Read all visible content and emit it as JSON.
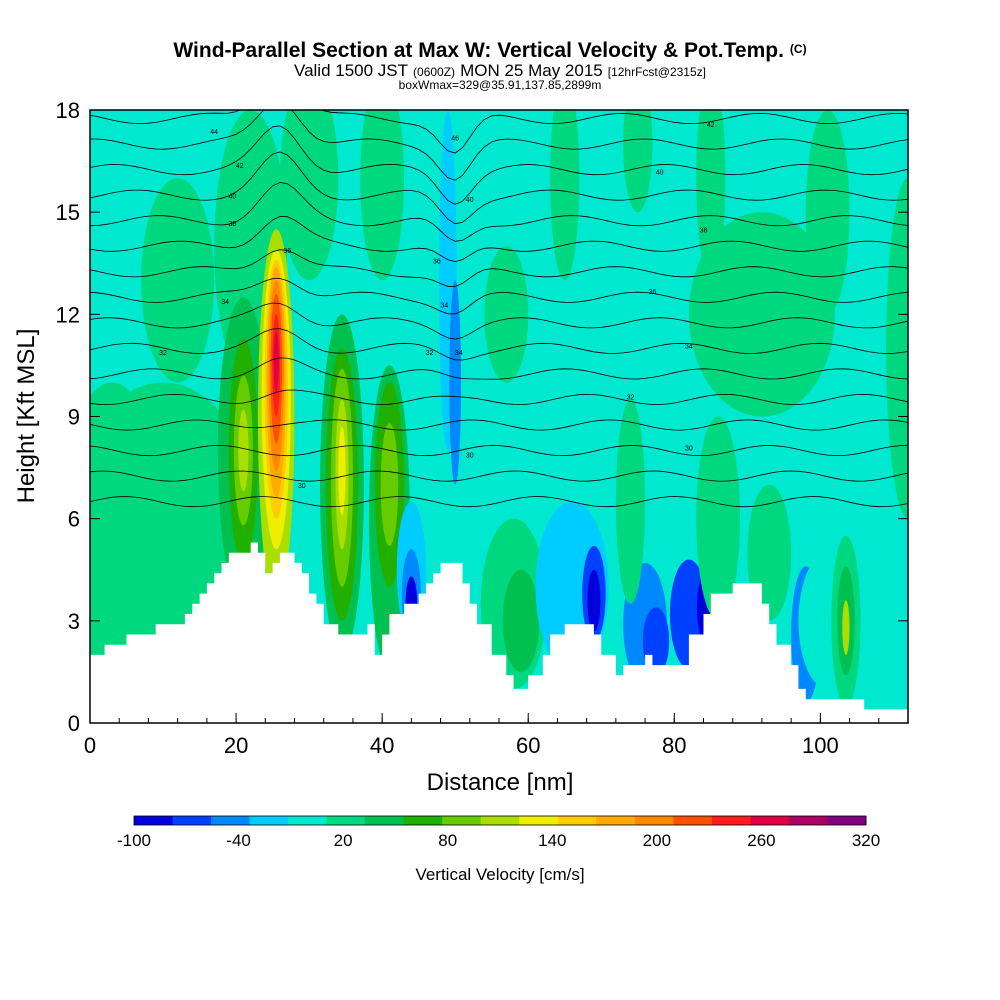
{
  "title": {
    "main": "Wind-Parallel Section at Max W: Vertical Velocity & Pot.Temp.",
    "main_suffix": "(C)",
    "valid_a": "Valid 1500 JST",
    "valid_b": "(0600Z)",
    "valid_c": "MON 25 May 2015",
    "valid_d": "[12hrFcst@2315z]",
    "box": "boxWmax=329@35.91,137.85,2899m"
  },
  "chart_data": {
    "type": "heatmap",
    "xlabel": "Distance [nm]",
    "ylabel": "Height [Kft MSL]",
    "xlim": [
      0,
      112
    ],
    "ylim": [
      0,
      18
    ],
    "x_ticks": [
      0,
      20,
      40,
      60,
      80,
      100
    ],
    "y_ticks": [
      0,
      3,
      6,
      9,
      12,
      15,
      18
    ],
    "colorbar": {
      "label": "Vertical Velocity [cm/s]",
      "tick_labels": [
        "-100",
        "-40",
        "20",
        "80",
        "140",
        "200",
        "260",
        "320"
      ],
      "colors": [
        "#0000dc",
        "#0040ff",
        "#0088ff",
        "#00ccff",
        "#00e8d0",
        "#00d880",
        "#00c050",
        "#22b000",
        "#66cc00",
        "#aadd00",
        "#eeee00",
        "#ffcc00",
        "#ffaa00",
        "#ff8800",
        "#ff5000",
        "#ff1e1e",
        "#dd0044",
        "#aa0066",
        "#800080"
      ]
    },
    "terrain": [
      [
        0,
        2
      ],
      [
        2,
        2
      ],
      [
        2,
        2.3
      ],
      [
        5,
        2.3
      ],
      [
        5,
        2.6
      ],
      [
        9,
        2.6
      ],
      [
        9,
        2.9
      ],
      [
        13,
        2.9
      ],
      [
        13,
        3.2
      ],
      [
        14,
        3.2
      ],
      [
        14,
        3.5
      ],
      [
        15,
        3.5
      ],
      [
        15,
        3.8
      ],
      [
        16,
        3.8
      ],
      [
        16,
        4.1
      ],
      [
        17,
        4.1
      ],
      [
        17,
        4.4
      ],
      [
        18,
        4.4
      ],
      [
        18,
        4.7
      ],
      [
        19,
        4.7
      ],
      [
        19,
        5.0
      ],
      [
        22,
        5.0
      ],
      [
        22,
        5.3
      ],
      [
        23,
        5.3
      ],
      [
        23,
        5.0
      ],
      [
        24,
        5.0
      ],
      [
        24,
        4.4
      ],
      [
        25,
        4.4
      ],
      [
        25,
        4.7
      ],
      [
        26,
        4.7
      ],
      [
        26,
        5.0
      ],
      [
        28,
        5.0
      ],
      [
        28,
        4.7
      ],
      [
        29,
        4.7
      ],
      [
        29,
        4.4
      ],
      [
        30,
        4.4
      ],
      [
        30,
        3.8
      ],
      [
        31,
        3.8
      ],
      [
        31,
        3.5
      ],
      [
        32,
        3.5
      ],
      [
        32,
        2.9
      ],
      [
        34,
        2.9
      ],
      [
        34,
        2.6
      ],
      [
        38,
        2.6
      ],
      [
        38,
        2.9
      ],
      [
        39,
        2.9
      ],
      [
        39,
        2.0
      ],
      [
        40,
        2.0
      ],
      [
        40,
        2.6
      ],
      [
        41,
        2.6
      ],
      [
        41,
        3.2
      ],
      [
        43,
        3.2
      ],
      [
        43,
        3.5
      ],
      [
        45,
        3.5
      ],
      [
        45,
        3.8
      ],
      [
        46,
        3.8
      ],
      [
        46,
        4.1
      ],
      [
        47,
        4.1
      ],
      [
        47,
        4.4
      ],
      [
        48,
        4.4
      ],
      [
        48,
        4.7
      ],
      [
        51,
        4.7
      ],
      [
        51,
        4.1
      ],
      [
        52,
        4.1
      ],
      [
        52,
        3.5
      ],
      [
        53,
        3.5
      ],
      [
        53,
        2.9
      ],
      [
        55,
        2.9
      ],
      [
        55,
        2.0
      ],
      [
        57,
        2.0
      ],
      [
        57,
        1.4
      ],
      [
        58,
        1.4
      ],
      [
        58,
        1.0
      ],
      [
        60,
        1.0
      ],
      [
        60,
        1.4
      ],
      [
        62,
        1.4
      ],
      [
        62,
        2.0
      ],
      [
        63,
        2.0
      ],
      [
        63,
        2.6
      ],
      [
        65,
        2.6
      ],
      [
        65,
        2.9
      ],
      [
        69,
        2.9
      ],
      [
        69,
        2.6
      ],
      [
        70,
        2.6
      ],
      [
        70,
        2.0
      ],
      [
        72,
        2.0
      ],
      [
        72,
        1.4
      ],
      [
        73,
        1.4
      ],
      [
        73,
        1.7
      ],
      [
        76,
        1.7
      ],
      [
        76,
        2.0
      ],
      [
        77,
        2.0
      ],
      [
        77,
        1.7
      ],
      [
        82,
        1.7
      ],
      [
        82,
        2.6
      ],
      [
        84,
        2.6
      ],
      [
        84,
        3.2
      ],
      [
        85,
        3.2
      ],
      [
        85,
        3.8
      ],
      [
        88,
        3.8
      ],
      [
        88,
        4.1
      ],
      [
        92,
        4.1
      ],
      [
        92,
        3.5
      ],
      [
        93,
        3.5
      ],
      [
        93,
        2.9
      ],
      [
        94,
        2.9
      ],
      [
        94,
        2.3
      ],
      [
        96,
        2.3
      ],
      [
        96,
        1.7
      ],
      [
        97,
        1.7
      ],
      [
        97,
        1.0
      ],
      [
        98,
        1.0
      ],
      [
        98,
        0.7
      ],
      [
        106,
        0.7
      ],
      [
        106,
        0.4
      ],
      [
        112,
        0.4
      ]
    ],
    "theta_labels": [
      {
        "text": "44",
        "x": 17,
        "y": 17.3
      },
      {
        "text": "42",
        "x": 20.5,
        "y": 16.3
      },
      {
        "text": "40",
        "x": 19.5,
        "y": 15.4
      },
      {
        "text": "38",
        "x": 19.5,
        "y": 14.6
      },
      {
        "text": "36",
        "x": 27,
        "y": 13.8
      },
      {
        "text": "34",
        "x": 18.5,
        "y": 12.3
      },
      {
        "text": "32",
        "x": 10,
        "y": 10.8
      },
      {
        "text": "30",
        "x": 29,
        "y": 6.9
      },
      {
        "text": "46",
        "x": 50,
        "y": 17.1
      },
      {
        "text": "40",
        "x": 52,
        "y": 15.3
      },
      {
        "text": "36",
        "x": 47.5,
        "y": 13.5
      },
      {
        "text": "34",
        "x": 48.5,
        "y": 12.2
      },
      {
        "text": "32",
        "x": 46.5,
        "y": 10.8
      },
      {
        "text": "34",
        "x": 50.5,
        "y": 10.8
      },
      {
        "text": "30",
        "x": 52,
        "y": 7.8
      },
      {
        "text": "42",
        "x": 85,
        "y": 17.5
      },
      {
        "text": "40",
        "x": 78,
        "y": 16.1
      },
      {
        "text": "38",
        "x": 84,
        "y": 14.4
      },
      {
        "text": "36",
        "x": 77,
        "y": 12.6
      },
      {
        "text": "34",
        "x": 82,
        "y": 11.0
      },
      {
        "text": "32",
        "x": 74,
        "y": 9.5
      },
      {
        "text": "30",
        "x": 82,
        "y": 8.0
      }
    ]
  }
}
